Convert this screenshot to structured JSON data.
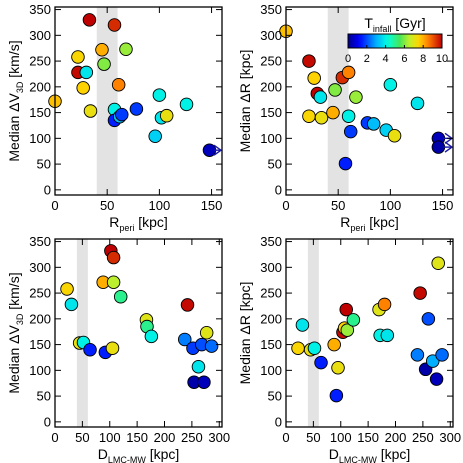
{
  "figure": {
    "background": "#ffffff"
  },
  "chart_data": [
    {
      "type": "scatter",
      "panel": "top-left",
      "xlabel": "R",
      "xlabel_sub": "peri",
      "xlabel_unit": " [kpc]",
      "ylabel": "Median ΔV",
      "ylabel_sub": "3D",
      "ylabel_unit": " [km/s]",
      "xlim": [
        0,
        160
      ],
      "ylim": [
        -10,
        355
      ],
      "xticks": [
        0,
        50,
        100,
        150
      ],
      "yticks": [
        0,
        50,
        100,
        150,
        200,
        250,
        300,
        350
      ],
      "shade": [
        40,
        60
      ],
      "points": [
        {
          "x": 0,
          "y": 172,
          "t": 7.8
        },
        {
          "x": 22,
          "y": 258,
          "t": 7.5
        },
        {
          "x": 22,
          "y": 228,
          "t": 9.9
        },
        {
          "x": 27,
          "y": 198,
          "t": 7.6
        },
        {
          "x": 30,
          "y": 228,
          "t": 3.8
        },
        {
          "x": 33,
          "y": 330,
          "t": 10.0
        },
        {
          "x": 34,
          "y": 153,
          "t": 7.2
        },
        {
          "x": 45,
          "y": 272,
          "t": 8.0
        },
        {
          "x": 47,
          "y": 244,
          "t": 6.0
        },
        {
          "x": 57,
          "y": 320,
          "t": 9.5
        },
        {
          "x": 61,
          "y": 204,
          "t": 8.5
        },
        {
          "x": 57,
          "y": 156,
          "t": 4.0
        },
        {
          "x": 57,
          "y": 135,
          "t": 1.5
        },
        {
          "x": 62,
          "y": 142,
          "t": 3.2
        },
        {
          "x": 64,
          "y": 146,
          "t": 1.8
        },
        {
          "x": 68,
          "y": 273,
          "t": 6.2
        },
        {
          "x": 78,
          "y": 157,
          "t": 1.8
        },
        {
          "x": 96,
          "y": 104,
          "t": 3.5
        },
        {
          "x": 100,
          "y": 184,
          "t": 4.0
        },
        {
          "x": 102,
          "y": 140,
          "t": 3.8
        },
        {
          "x": 107,
          "y": 144,
          "t": 7.2
        },
        {
          "x": 126,
          "y": 166,
          "t": 4.0
        },
        {
          "x": 148,
          "y": 77,
          "t": 0.5
        }
      ],
      "arrows": [
        {
          "x": 148,
          "y": 77
        }
      ]
    },
    {
      "type": "scatter",
      "panel": "top-right",
      "xlabel": "R",
      "xlabel_sub": "peri",
      "xlabel_unit": " [kpc]",
      "ylabel": "Median ΔR",
      "ylabel_sub": "",
      "ylabel_unit": " [kpc]",
      "xlim": [
        0,
        160
      ],
      "ylim": [
        -10,
        355
      ],
      "xticks": [
        0,
        50,
        100,
        150
      ],
      "yticks": [
        0,
        50,
        100,
        150,
        200,
        250,
        300,
        350
      ],
      "shade": [
        40,
        60
      ],
      "colorbar": {
        "title": "T",
        "title_sub": "infall",
        "title_unit": " [Gyr]",
        "min": 0,
        "max": 10,
        "ticks": [
          0,
          2,
          4,
          6,
          8,
          10
        ]
      },
      "points": [
        {
          "x": 0,
          "y": 308,
          "t": 7.8
        },
        {
          "x": 22,
          "y": 250,
          "t": 9.9
        },
        {
          "x": 22,
          "y": 143,
          "t": 7.5
        },
        {
          "x": 27,
          "y": 217,
          "t": 7.6
        },
        {
          "x": 30,
          "y": 187,
          "t": 10.0
        },
        {
          "x": 33,
          "y": 180,
          "t": 3.8
        },
        {
          "x": 34,
          "y": 140,
          "t": 7.2
        },
        {
          "x": 45,
          "y": 150,
          "t": 8.0
        },
        {
          "x": 47,
          "y": 194,
          "t": 6.0
        },
        {
          "x": 54,
          "y": 218,
          "t": 9.5
        },
        {
          "x": 60,
          "y": 228,
          "t": 8.5
        },
        {
          "x": 57,
          "y": 51,
          "t": 1.5
        },
        {
          "x": 60,
          "y": 143,
          "t": 4.0
        },
        {
          "x": 62,
          "y": 113,
          "t": 1.8
        },
        {
          "x": 67,
          "y": 180,
          "t": 6.2
        },
        {
          "x": 78,
          "y": 130,
          "t": 1.8
        },
        {
          "x": 84,
          "y": 128,
          "t": 3.2
        },
        {
          "x": 96,
          "y": 116,
          "t": 3.5
        },
        {
          "x": 100,
          "y": 204,
          "t": 4.0
        },
        {
          "x": 104,
          "y": 105,
          "t": 7.2
        },
        {
          "x": 126,
          "y": 168,
          "t": 3.8
        },
        {
          "x": 146,
          "y": 100,
          "t": 0.5
        },
        {
          "x": 146,
          "y": 83,
          "t": 0.3
        }
      ],
      "arrows": [
        {
          "x": 146,
          "y": 100
        },
        {
          "x": 146,
          "y": 83
        }
      ]
    },
    {
      "type": "scatter",
      "panel": "bottom-left",
      "xlabel": "D",
      "xlabel_sub": "LMC-MW",
      "xlabel_unit": " [kpc]",
      "ylabel": "Median ΔV",
      "ylabel_sub": "3D",
      "ylabel_unit": " [km/s]",
      "xlim": [
        0,
        305
      ],
      "ylim": [
        -10,
        355
      ],
      "xticks": [
        0,
        50,
        100,
        150,
        200,
        250,
        300
      ],
      "yticks": [
        0,
        50,
        100,
        150,
        200,
        250,
        300,
        350
      ],
      "shade": [
        40,
        60
      ],
      "points": [
        {
          "x": 22,
          "y": 258,
          "t": 7.5
        },
        {
          "x": 30,
          "y": 228,
          "t": 3.8
        },
        {
          "x": 45,
          "y": 153,
          "t": 7.2
        },
        {
          "x": 52,
          "y": 154,
          "t": 4.0
        },
        {
          "x": 64,
          "y": 140,
          "t": 1.5
        },
        {
          "x": 88,
          "y": 271,
          "t": 8.0
        },
        {
          "x": 92,
          "y": 135,
          "t": 1.5
        },
        {
          "x": 102,
          "y": 332,
          "t": 10.0
        },
        {
          "x": 107,
          "y": 319,
          "t": 9.5
        },
        {
          "x": 105,
          "y": 143,
          "t": 7.2
        },
        {
          "x": 107,
          "y": 271,
          "t": 6.5
        },
        {
          "x": 120,
          "y": 243,
          "t": 5.0
        },
        {
          "x": 167,
          "y": 198,
          "t": 7.0
        },
        {
          "x": 168,
          "y": 185,
          "t": 5.0
        },
        {
          "x": 176,
          "y": 166,
          "t": 4.0
        },
        {
          "x": 237,
          "y": 160,
          "t": 2.5
        },
        {
          "x": 242,
          "y": 227,
          "t": 9.9
        },
        {
          "x": 252,
          "y": 143,
          "t": 1.8
        },
        {
          "x": 254,
          "y": 77,
          "t": 0.3
        },
        {
          "x": 262,
          "y": 107,
          "t": 3.8
        },
        {
          "x": 268,
          "y": 150,
          "t": 2.0
        },
        {
          "x": 272,
          "y": 77,
          "t": 0.5
        },
        {
          "x": 277,
          "y": 173,
          "t": 7.0
        },
        {
          "x": 286,
          "y": 147,
          "t": 2.3
        }
      ]
    },
    {
      "type": "scatter",
      "panel": "bottom-right",
      "xlabel": "D",
      "xlabel_sub": "LMC-MW",
      "xlabel_unit": " [kpc]",
      "ylabel": "Median ΔR",
      "ylabel_sub": "",
      "ylabel_unit": " [kpc]",
      "xlim": [
        0,
        305
      ],
      "ylim": [
        -10,
        355
      ],
      "xticks": [
        0,
        50,
        100,
        150,
        200,
        250,
        300
      ],
      "yticks": [
        0,
        50,
        100,
        150,
        200,
        250,
        300,
        350
      ],
      "shade": [
        40,
        60
      ],
      "points": [
        {
          "x": 22,
          "y": 143,
          "t": 7.5
        },
        {
          "x": 30,
          "y": 188,
          "t": 3.8
        },
        {
          "x": 45,
          "y": 140,
          "t": 7.2
        },
        {
          "x": 52,
          "y": 143,
          "t": 4.0
        },
        {
          "x": 64,
          "y": 115,
          "t": 1.5
        },
        {
          "x": 88,
          "y": 150,
          "t": 8.0
        },
        {
          "x": 92,
          "y": 51,
          "t": 1.5
        },
        {
          "x": 95,
          "y": 105,
          "t": 7.2
        },
        {
          "x": 104,
          "y": 174,
          "t": 9.9
        },
        {
          "x": 107,
          "y": 182,
          "t": 7.6
        },
        {
          "x": 110,
          "y": 218,
          "t": 10.0
        },
        {
          "x": 112,
          "y": 178,
          "t": 6.2
        },
        {
          "x": 123,
          "y": 198,
          "t": 5.0
        },
        {
          "x": 170,
          "y": 218,
          "t": 7.0
        },
        {
          "x": 172,
          "y": 168,
          "t": 4.0
        },
        {
          "x": 180,
          "y": 228,
          "t": 8.5
        },
        {
          "x": 185,
          "y": 168,
          "t": 3.8
        },
        {
          "x": 240,
          "y": 130,
          "t": 2.5
        },
        {
          "x": 245,
          "y": 250,
          "t": 9.9
        },
        {
          "x": 255,
          "y": 102,
          "t": 0.3
        },
        {
          "x": 260,
          "y": 200,
          "t": 2.0
        },
        {
          "x": 268,
          "y": 118,
          "t": 3.0
        },
        {
          "x": 275,
          "y": 83,
          "t": 0.5
        },
        {
          "x": 278,
          "y": 308,
          "t": 7.0
        },
        {
          "x": 285,
          "y": 130,
          "t": 2.3
        }
      ]
    }
  ]
}
